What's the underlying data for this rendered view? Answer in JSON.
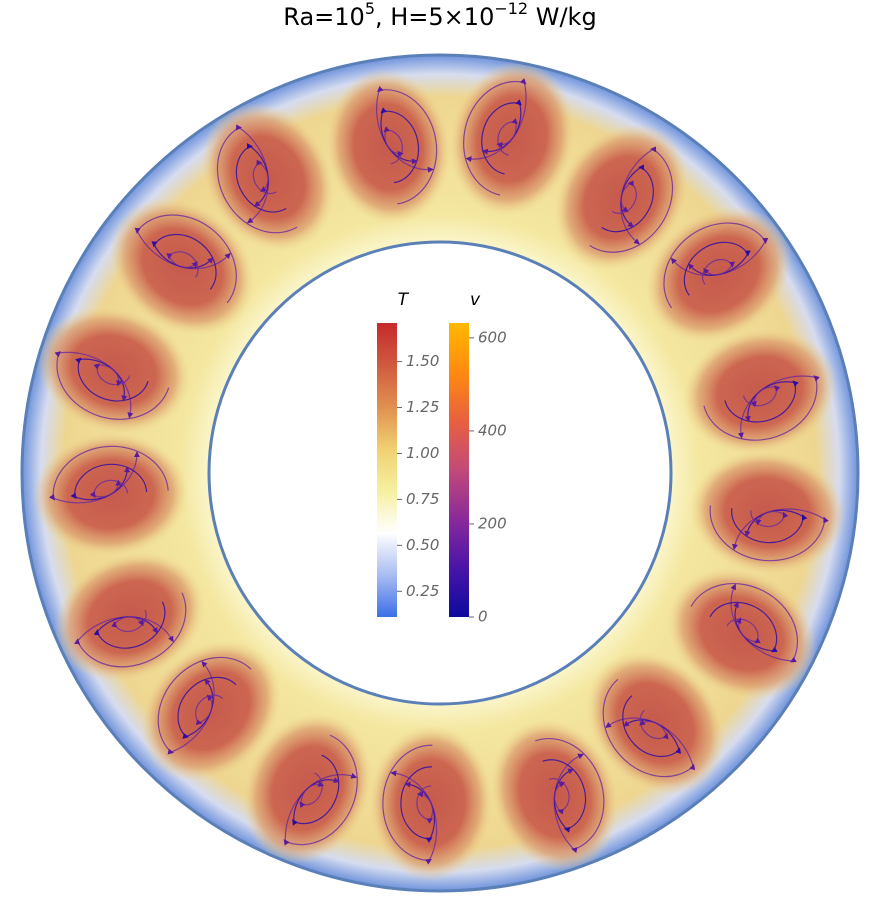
{
  "chart_data": {
    "type": "field",
    "title": {
      "parts": [
        "Ra=10",
        "5",
        ", H=5×10",
        "−12",
        " W/kg"
      ]
    },
    "colorbars": [
      {
        "label": "T",
        "lim": [
          0.11,
          1.71
        ],
        "colors": [
          "#3b6fe6",
          "#a9bdf2",
          "#ffffff",
          "#f6f0a0",
          "#f0d070",
          "#e09050",
          "#d05a40",
          "#c52a2a"
        ],
        "ticks": [
          0.25,
          {
            "value": 0.5,
            "label": "0.50"
          },
          0.75,
          {
            "value": 1.0,
            "label": "1.00"
          },
          1.25,
          {
            "value": 1.5,
            "label": "1.50"
          }
        ]
      },
      {
        "label": "v",
        "lim": [
          0,
          632
        ],
        "colors": [
          "#0d0a9e",
          "#4a14a8",
          "#8a2a9a",
          "#c24a78",
          "#e86040",
          "#ff8a10",
          "#ffb800"
        ],
        "ticks": [
          0,
          200,
          400,
          600
        ]
      }
    ]
  }
}
